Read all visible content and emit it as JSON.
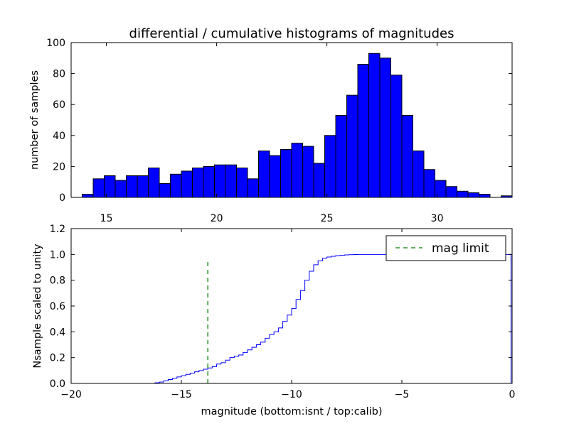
{
  "chart_data": [
    {
      "type": "bar",
      "title": "differential / cumulative histograms of magnitudes",
      "xlabel": "",
      "ylabel": "number of samples",
      "xlim": [
        13.4,
        33.4
      ],
      "ylim": [
        0,
        100
      ],
      "xticks": [
        "15",
        "20",
        "25",
        "30"
      ],
      "yticks": [
        "0",
        "20",
        "40",
        "60",
        "80",
        "100"
      ],
      "bin_start": 13.9,
      "bin_width": 0.5,
      "values": [
        2,
        12,
        14,
        11,
        14,
        14,
        19,
        9,
        15,
        17,
        19,
        20,
        21,
        21,
        19,
        12,
        30,
        27,
        31,
        35,
        33,
        22,
        40,
        53,
        66,
        86,
        93,
        90,
        79,
        53,
        30,
        18,
        11,
        7,
        4,
        3,
        2,
        0,
        1
      ],
      "color": "#0000ff"
    },
    {
      "type": "line",
      "xlabel": "magnitude (bottom:isnt / top:calib)",
      "ylabel": "Nsample scaled to unity",
      "xlim": [
        -20,
        0
      ],
      "ylim": [
        0,
        1.2
      ],
      "xticks": [
        "−20",
        "−15",
        "−10",
        "−5",
        "0"
      ],
      "yticks": [
        "0.0",
        "0.2",
        "0.4",
        "0.6",
        "0.8",
        "1.0",
        "1.2"
      ],
      "step_edges": [
        -20,
        -16.2,
        -16.0,
        -15.8,
        -15.6,
        -15.4,
        -15.2,
        -15.0,
        -14.8,
        -14.6,
        -14.4,
        -14.2,
        -14.0,
        -13.8,
        -13.6,
        -13.4,
        -13.2,
        -13.0,
        -12.8,
        -12.6,
        -12.4,
        -12.2,
        -12.0,
        -11.8,
        -11.6,
        -11.4,
        -11.2,
        -11.0,
        -10.8,
        -10.6,
        -10.4,
        -10.2,
        -10.0,
        -9.8,
        -9.6,
        -9.4,
        -9.2,
        -9.0,
        -8.8,
        -8.6,
        -8.4,
        -8.2,
        -8.0,
        -7.8,
        -7.6,
        -7.4,
        -7.2,
        -7.0,
        -6.5,
        -6.0,
        -0.05
      ],
      "step_values": [
        0.0,
        0.005,
        0.01,
        0.02,
        0.03,
        0.04,
        0.05,
        0.06,
        0.07,
        0.08,
        0.09,
        0.1,
        0.11,
        0.12,
        0.13,
        0.15,
        0.16,
        0.18,
        0.2,
        0.21,
        0.22,
        0.24,
        0.26,
        0.28,
        0.3,
        0.32,
        0.35,
        0.38,
        0.4,
        0.43,
        0.48,
        0.53,
        0.58,
        0.65,
        0.72,
        0.8,
        0.87,
        0.92,
        0.95,
        0.97,
        0.98,
        0.985,
        0.99,
        0.993,
        0.996,
        0.998,
        0.999,
        1.0,
        1.0,
        1.0
      ],
      "color": "#0000ff",
      "mag_limit": {
        "label": "mag limit",
        "x": -13.8,
        "y_max": 0.97,
        "color": "#008000"
      },
      "legend": "upper right"
    }
  ]
}
